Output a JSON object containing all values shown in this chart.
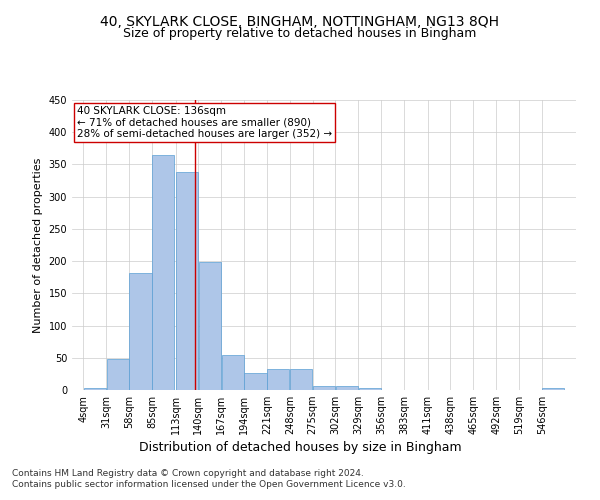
{
  "title1": "40, SKYLARK CLOSE, BINGHAM, NOTTINGHAM, NG13 8QH",
  "title2": "Size of property relative to detached houses in Bingham",
  "xlabel": "Distribution of detached houses by size in Bingham",
  "ylabel": "Number of detached properties",
  "bin_labels": [
    "4sqm",
    "31sqm",
    "58sqm",
    "85sqm",
    "113sqm",
    "140sqm",
    "167sqm",
    "194sqm",
    "221sqm",
    "248sqm",
    "275sqm",
    "302sqm",
    "329sqm",
    "356sqm",
    "383sqm",
    "411sqm",
    "438sqm",
    "465sqm",
    "492sqm",
    "519sqm",
    "546sqm"
  ],
  "bin_edges": [
    4,
    31,
    58,
    85,
    113,
    140,
    167,
    194,
    221,
    248,
    275,
    302,
    329,
    356,
    383,
    411,
    438,
    465,
    492,
    519,
    546
  ],
  "bar_heights": [
    3,
    48,
    181,
    365,
    338,
    198,
    54,
    26,
    32,
    32,
    6,
    6,
    3,
    0,
    0,
    0,
    0,
    0,
    0,
    0,
    3
  ],
  "bar_color": "#aec6e8",
  "bar_edgecolor": "#5a9fd4",
  "grid_color": "#cccccc",
  "background_color": "#ffffff",
  "red_line_x": 136,
  "annotation_text": "40 SKYLARK CLOSE: 136sqm\n← 71% of detached houses are smaller (890)\n28% of semi-detached houses are larger (352) →",
  "annotation_box_color": "#ffffff",
  "annotation_box_edgecolor": "#cc0000",
  "ylim": [
    0,
    450
  ],
  "yticks": [
    0,
    50,
    100,
    150,
    200,
    250,
    300,
    350,
    400,
    450
  ],
  "footer1": "Contains HM Land Registry data © Crown copyright and database right 2024.",
  "footer2": "Contains public sector information licensed under the Open Government Licence v3.0.",
  "title1_fontsize": 10,
  "title2_fontsize": 9,
  "xlabel_fontsize": 9,
  "ylabel_fontsize": 8,
  "tick_fontsize": 7,
  "annotation_fontsize": 7.5,
  "footer_fontsize": 6.5
}
